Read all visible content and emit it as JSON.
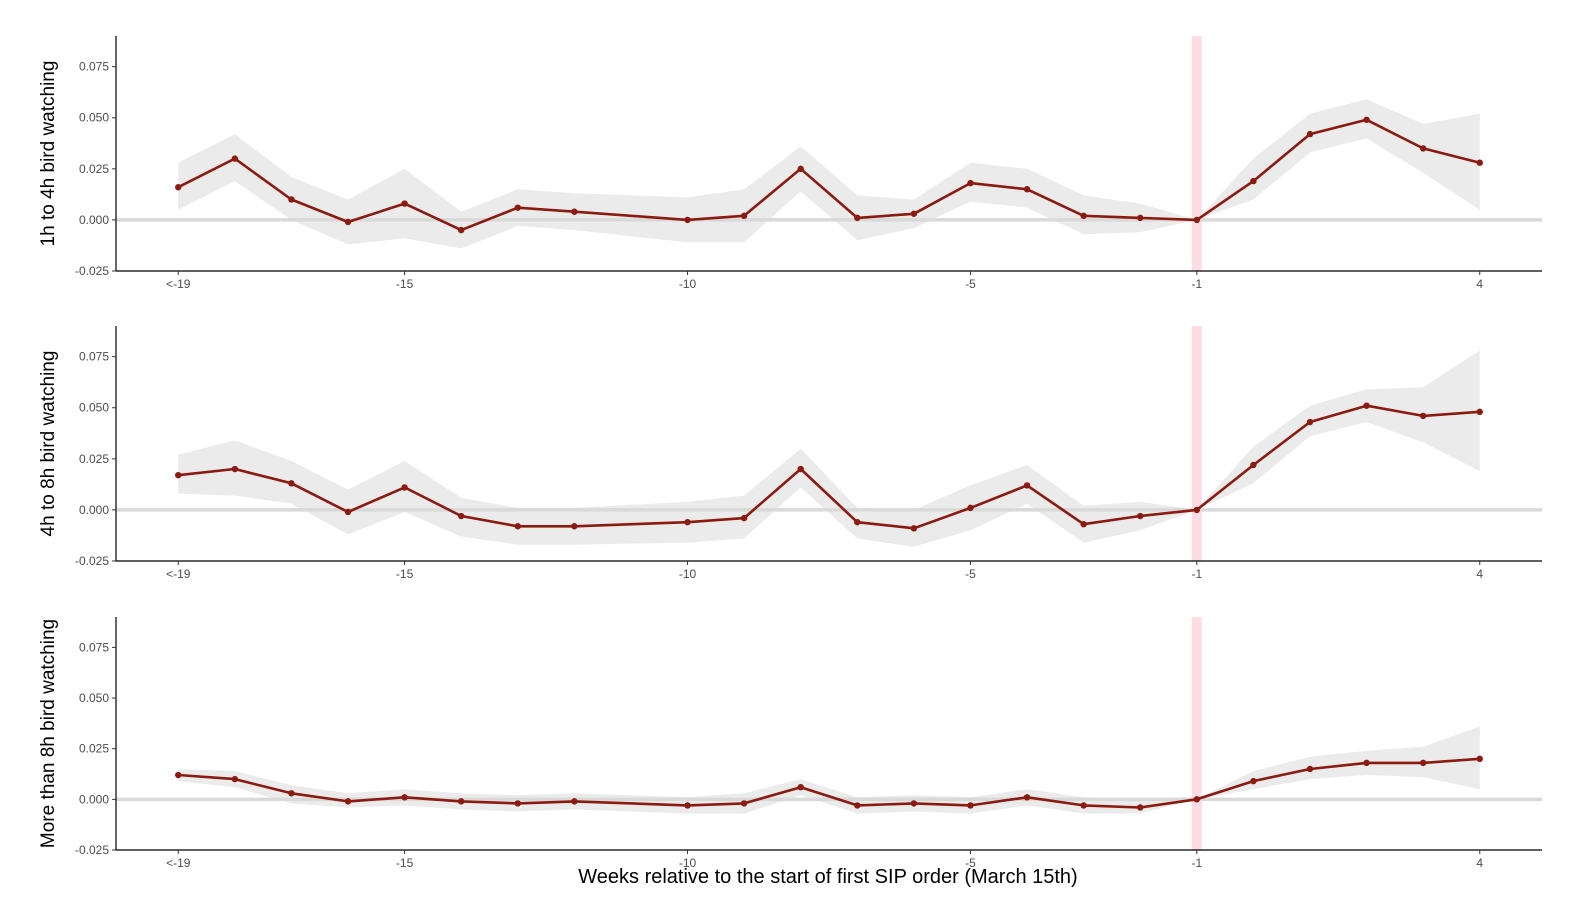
{
  "chart_data": {
    "type": "line",
    "xlabel": "Weeks relative to the start of first SIP order (March 15th)",
    "x_tick_labels": [
      "<-19",
      "-15",
      "-10",
      "-5",
      "-1",
      "4"
    ],
    "x_tick_values": [
      -19,
      -15,
      -10,
      -5,
      -1,
      4
    ],
    "x": [
      -19,
      -18,
      -17,
      -16,
      -15,
      -14,
      -13,
      -12,
      -10,
      -9,
      -8,
      -7,
      -6,
      -5,
      -4,
      -3,
      -2,
      -1,
      0,
      1,
      2,
      3,
      4
    ],
    "xlim": [
      -20.1,
      5.1
    ],
    "ylim": [
      -0.025,
      0.09
    ],
    "y_tick_labels": [
      "-0.025",
      "0.000",
      "0.025",
      "0.050",
      "0.075"
    ],
    "y_tick_values": [
      -0.025,
      0.0,
      0.025,
      0.05,
      0.075
    ],
    "reference_x": -1,
    "reference_y": 0,
    "colors": {
      "line": "#8b1a10",
      "ribbon": "#ebebeb",
      "reference_band": "#fddde3",
      "zero_line": "#d9d9d9",
      "axis": "#000000"
    },
    "panels": [
      {
        "ylabel": "1h to 4h bird watching",
        "y": [
          0.016,
          0.03,
          0.01,
          -0.001,
          0.008,
          -0.005,
          0.006,
          0.004,
          0.0,
          0.002,
          0.025,
          0.001,
          0.003,
          0.018,
          0.015,
          0.002,
          0.001,
          0.0,
          0.019,
          0.042,
          0.049,
          0.035,
          0.028
        ],
        "lower": [
          0.005,
          0.019,
          0.0,
          -0.012,
          -0.009,
          -0.014,
          -0.003,
          -0.005,
          -0.011,
          -0.011,
          0.014,
          -0.01,
          -0.004,
          0.009,
          0.006,
          -0.007,
          -0.006,
          0.0,
          0.01,
          0.033,
          0.04,
          0.023,
          0.005
        ],
        "upper": [
          0.028,
          0.042,
          0.021,
          0.01,
          0.025,
          0.004,
          0.015,
          0.013,
          0.011,
          0.015,
          0.036,
          0.012,
          0.01,
          0.028,
          0.025,
          0.012,
          0.008,
          0.0,
          0.03,
          0.052,
          0.059,
          0.047,
          0.052
        ]
      },
      {
        "ylabel": "4h to 8h bird watching",
        "y": [
          0.017,
          0.02,
          0.013,
          -0.001,
          0.011,
          -0.003,
          -0.008,
          -0.008,
          -0.006,
          -0.004,
          0.02,
          -0.006,
          -0.009,
          0.001,
          0.012,
          -0.007,
          -0.003,
          0.0,
          0.022,
          0.043,
          0.051,
          0.046,
          0.048
        ],
        "lower": [
          0.008,
          0.007,
          0.003,
          -0.012,
          -0.001,
          -0.013,
          -0.017,
          -0.017,
          -0.016,
          -0.014,
          0.011,
          -0.014,
          -0.018,
          -0.01,
          0.003,
          -0.016,
          -0.01,
          0.0,
          0.013,
          0.036,
          0.043,
          0.033,
          0.019
        ],
        "upper": [
          0.027,
          0.034,
          0.024,
          0.01,
          0.024,
          0.006,
          0.001,
          0.001,
          0.004,
          0.007,
          0.03,
          0.001,
          0.0,
          0.012,
          0.022,
          0.002,
          0.004,
          0.0,
          0.031,
          0.051,
          0.059,
          0.06,
          0.078
        ]
      },
      {
        "ylabel": "More than 8h bird watching",
        "y": [
          0.012,
          0.01,
          0.003,
          -0.001,
          0.001,
          -0.001,
          -0.002,
          -0.001,
          -0.003,
          -0.002,
          0.006,
          -0.003,
          -0.002,
          -0.003,
          0.001,
          -0.003,
          -0.004,
          0.0,
          0.009,
          0.015,
          0.018,
          0.018,
          0.02
        ],
        "lower": [
          0.009,
          0.006,
          -0.002,
          -0.004,
          -0.003,
          -0.005,
          -0.006,
          -0.005,
          -0.007,
          -0.007,
          0.002,
          -0.007,
          -0.006,
          -0.007,
          -0.003,
          -0.007,
          -0.007,
          0.0,
          0.005,
          0.01,
          0.012,
          0.011,
          0.005
        ],
        "upper": [
          0.015,
          0.014,
          0.007,
          0.003,
          0.005,
          0.003,
          0.002,
          0.003,
          0.001,
          0.003,
          0.01,
          0.001,
          0.002,
          0.001,
          0.005,
          0.001,
          0.0,
          0.0,
          0.014,
          0.021,
          0.024,
          0.026,
          0.036
        ]
      }
    ]
  }
}
